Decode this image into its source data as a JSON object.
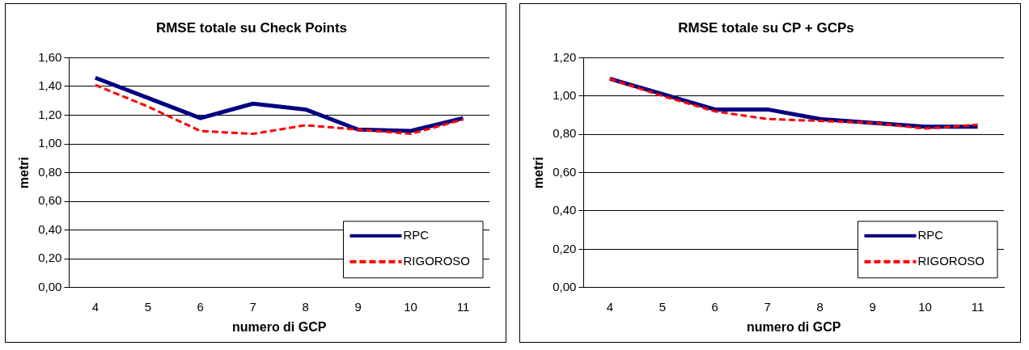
{
  "chart_data": [
    {
      "type": "line",
      "title": "RMSE totale su Check Points",
      "xlabel": "numero di GCP",
      "ylabel": "metri",
      "categories": [
        "4",
        "5",
        "6",
        "7",
        "8",
        "9",
        "10",
        "11"
      ],
      "series": [
        {
          "name": "RPC",
          "color": "#000080",
          "line_style": "solid",
          "values": [
            1.46,
            1.32,
            1.18,
            1.28,
            1.24,
            1.1,
            1.09,
            1.18
          ]
        },
        {
          "name": "RIGOROSO",
          "color": "#ff0000",
          "line_style": "dashed",
          "values": [
            1.41,
            1.26,
            1.09,
            1.07,
            1.13,
            1.1,
            1.07,
            1.17
          ]
        }
      ],
      "ylim": [
        0,
        1.6
      ],
      "yticks": [
        {
          "value": 0,
          "label": "0,00"
        },
        {
          "value": 0.2,
          "label": "0,20"
        },
        {
          "value": 0.4,
          "label": "0,40"
        },
        {
          "value": 0.6,
          "label": "0,60"
        },
        {
          "value": 0.8,
          "label": "0,80"
        },
        {
          "value": 1.0,
          "label": "1,00"
        },
        {
          "value": 1.2,
          "label": "1,20"
        },
        {
          "value": 1.4,
          "label": "1,40"
        },
        {
          "value": 1.6,
          "label": "1,60"
        }
      ],
      "grid": "y",
      "legend": "bottom right",
      "marker": "none"
    },
    {
      "type": "line",
      "title": "RMSE totale su CP + GCPs",
      "xlabel": "numero di GCP",
      "ylabel": "metri",
      "categories": [
        "4",
        "5",
        "6",
        "7",
        "8",
        "9",
        "10",
        "11"
      ],
      "series": [
        {
          "name": "RPC",
          "color": "#000080",
          "line_style": "solid",
          "values": [
            1.09,
            1.01,
            0.93,
            0.93,
            0.88,
            0.86,
            0.84,
            0.84
          ]
        },
        {
          "name": "RIGOROSO",
          "color": "#ff0000",
          "line_style": "dashed",
          "values": [
            1.09,
            1.0,
            0.92,
            0.88,
            0.87,
            0.86,
            0.83,
            0.85
          ]
        }
      ],
      "ylim": [
        0,
        1.2
      ],
      "yticks": [
        {
          "value": 0,
          "label": "0,00"
        },
        {
          "value": 0.2,
          "label": "0,20"
        },
        {
          "value": 0.4,
          "label": "0,40"
        },
        {
          "value": 0.6,
          "label": "0,60"
        },
        {
          "value": 0.8,
          "label": "0,80"
        },
        {
          "value": 1.0,
          "label": "1,00"
        },
        {
          "value": 1.2,
          "label": "1,20"
        }
      ],
      "grid": "y",
      "legend": "bottom right",
      "marker": "none"
    }
  ]
}
